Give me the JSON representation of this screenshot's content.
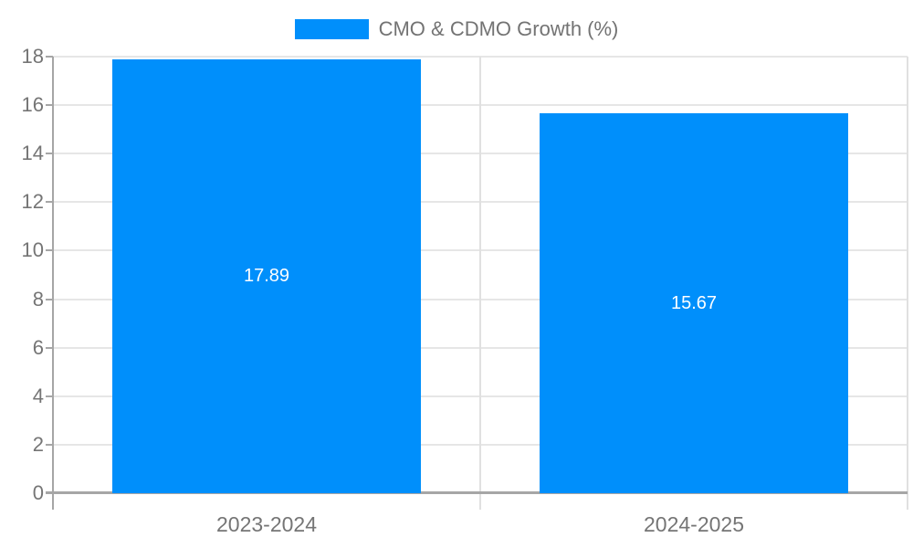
{
  "chart_data": {
    "type": "bar",
    "title": "CMO & CDMO Growth (%)",
    "categories": [
      "2023-2024",
      "2024-2025"
    ],
    "values": [
      17.89,
      15.67
    ],
    "value_labels": [
      "17.89",
      "15.67"
    ],
    "series": [
      {
        "name": "CMO & CDMO Growth (%)",
        "values": [
          17.89,
          15.67
        ]
      }
    ],
    "xlabel": "",
    "ylabel": "",
    "ylim": [
      0,
      18
    ],
    "yticks": [
      0,
      2,
      4,
      6,
      8,
      10,
      12,
      14,
      16,
      18
    ],
    "grid": true,
    "legend_position": "top-center",
    "data_labels_position": "center-of-bar",
    "colors": {
      "bar": "#008FFB",
      "data_label_text": "#FFFFFF",
      "axis_text": "#757575",
      "legend_text": "#737373",
      "gridline": "#E6E6E6",
      "category_line": "#E0E0E0",
      "axis_line": "#A6A6A6",
      "background": "#FFFFFF"
    }
  }
}
